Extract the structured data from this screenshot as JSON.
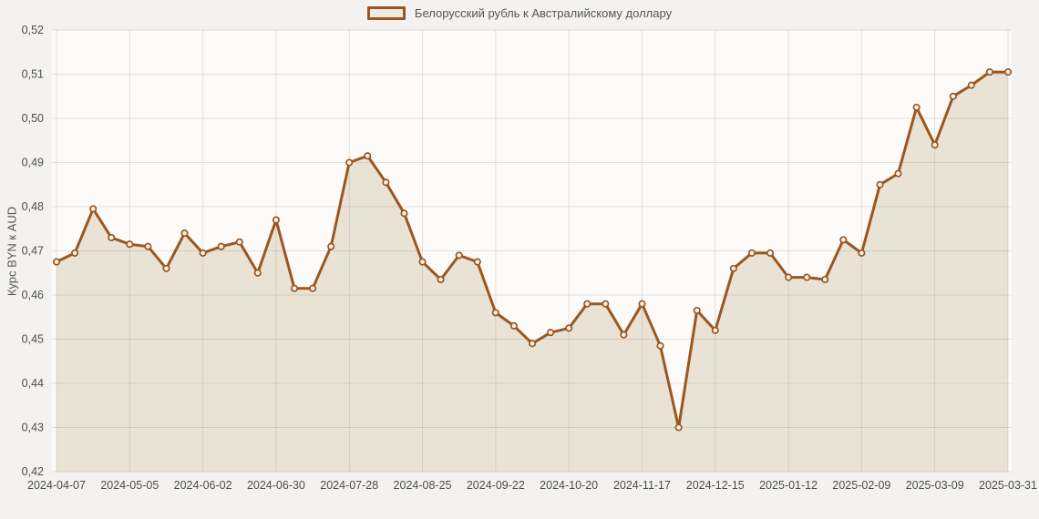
{
  "page": {
    "background": "#f3f2f0"
  },
  "colors": {
    "line": "#9c561f",
    "area_fill": "#e9e3d6",
    "marker_fill": "#f9f4ea",
    "plot_bg": "#fcfbf9",
    "grid": "rgba(100,95,80,0.16)",
    "tick_text": "#4d4d4d",
    "legend_text": "#555555",
    "legend_swatch_fill": "#f0ebdf"
  },
  "chart_data": {
    "type": "area",
    "title": "Белорусский рубль к Австралийскому доллару",
    "series_label": "Белорусский рубль к Австралийскому доллару",
    "ylabel": "Курс BYN к AUD",
    "xlabel": "",
    "ylim": [
      0.42,
      0.52
    ],
    "y_tick_step": 0.01,
    "decimal_separator": ",",
    "grid": true,
    "legend_position": "top",
    "marker": "circle",
    "x": [
      "2024-04-07",
      "2024-04-14",
      "2024-04-21",
      "2024-04-28",
      "2024-05-05",
      "2024-05-12",
      "2024-05-19",
      "2024-05-26",
      "2024-06-02",
      "2024-06-09",
      "2024-06-16",
      "2024-06-23",
      "2024-06-30",
      "2024-07-07",
      "2024-07-14",
      "2024-07-21",
      "2024-07-28",
      "2024-08-04",
      "2024-08-11",
      "2024-08-18",
      "2024-08-25",
      "2024-09-01",
      "2024-09-08",
      "2024-09-15",
      "2024-09-22",
      "2024-09-29",
      "2024-10-06",
      "2024-10-13",
      "2024-10-20",
      "2024-10-27",
      "2024-11-03",
      "2024-11-10",
      "2024-11-17",
      "2024-11-24",
      "2024-12-01",
      "2024-12-08",
      "2024-12-15",
      "2024-12-22",
      "2024-12-29",
      "2025-01-05",
      "2025-01-12",
      "2025-01-19",
      "2025-01-26",
      "2025-02-02",
      "2025-02-09",
      "2025-02-16",
      "2025-02-23",
      "2025-03-02",
      "2025-03-09",
      "2025-03-16",
      "2025-03-23",
      "2025-03-30",
      "2025-03-31"
    ],
    "values": [
      0.4675,
      0.4695,
      0.4795,
      0.473,
      0.4715,
      0.471,
      0.466,
      0.474,
      0.4695,
      0.471,
      0.472,
      0.465,
      0.477,
      0.4615,
      0.4615,
      0.471,
      0.49,
      0.4915,
      0.4855,
      0.4785,
      0.4675,
      0.4635,
      0.469,
      0.4675,
      0.456,
      0.453,
      0.449,
      0.4515,
      0.4525,
      0.458,
      0.458,
      0.451,
      0.458,
      0.4485,
      0.43,
      0.4565,
      0.452,
      0.466,
      0.4695,
      0.4695,
      0.464,
      0.464,
      0.4635,
      0.4725,
      0.4695,
      0.485,
      0.4875,
      0.5025,
      0.494,
      0.505,
      0.5075,
      0.5105,
      0.5105
    ],
    "x_tick_every": 4,
    "x_tick_labels": [
      "2024-04-07",
      "2024-05-05",
      "2024-06-02",
      "2024-06-30",
      "2024-07-28",
      "2024-08-25",
      "2024-09-22",
      "2024-10-20",
      "2024-11-17",
      "2024-12-15",
      "2025-01-12",
      "2025-02-09",
      "2025-03-09",
      "2025-03-31"
    ]
  }
}
